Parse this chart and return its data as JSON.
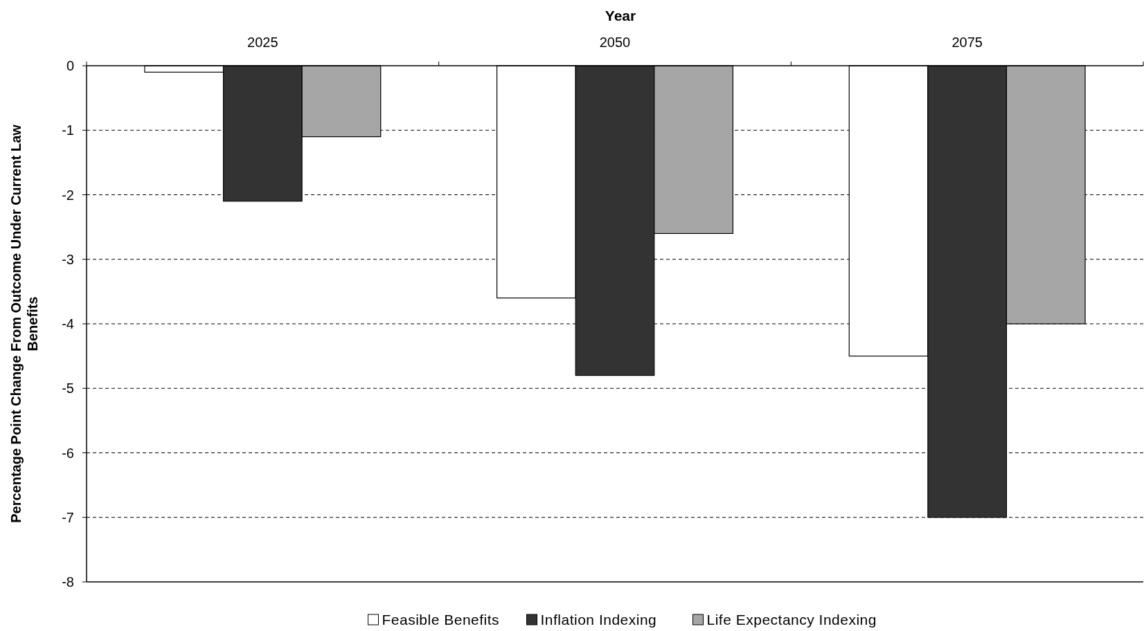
{
  "chart_data": {
    "type": "bar",
    "xlabel": "Year",
    "ylabel": "Percentage Point Change From Outcome Under Current Law\nBenefits",
    "categories": [
      "2025",
      "2050",
      "2075"
    ],
    "series": [
      {
        "name": "Feasible Benefits",
        "color": "#ffffff",
        "values": [
          -0.1,
          -3.6,
          -4.5
        ]
      },
      {
        "name": "Inflation Indexing",
        "color": "#333333",
        "values": [
          -2.1,
          -4.8,
          -7.0
        ]
      },
      {
        "name": "Life Expectancy Indexing",
        "color": "#a6a6a6",
        "values": [
          -1.1,
          -2.6,
          -4.0
        ]
      }
    ],
    "ylim": [
      -8,
      0
    ],
    "yticks": [
      0,
      -1,
      -2,
      -3,
      -4,
      -5,
      -6,
      -7,
      -8
    ],
    "grid": "y",
    "legend": "bottom"
  }
}
